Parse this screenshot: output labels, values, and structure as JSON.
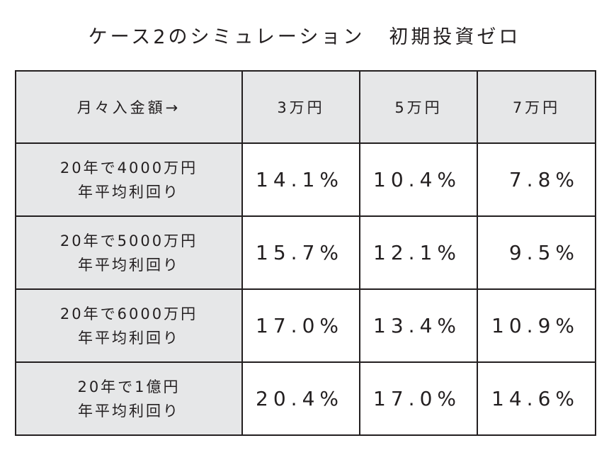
{
  "title": {
    "main": "ケース2のシミュレーション",
    "sub": "初期投資ゼロ"
  },
  "table": {
    "header_label": "月々入金額→",
    "columns": [
      "3万円",
      "5万円",
      "7万円"
    ],
    "rows": [
      {
        "label_line1": "20年で4000万円",
        "label_line2": "年平均利回り",
        "values": [
          "14.1%",
          "10.4%",
          "7.8%"
        ]
      },
      {
        "label_line1": "20年で5000万円",
        "label_line2": "年平均利回り",
        "values": [
          "15.7%",
          "12.1%",
          "9.5%"
        ]
      },
      {
        "label_line1": "20年で6000万円",
        "label_line2": "年平均利回り",
        "values": [
          "17.0%",
          "13.4%",
          "10.9%"
        ]
      },
      {
        "label_line1": "20年で1億円",
        "label_line2": "年平均利回り",
        "values": [
          "20.4%",
          "17.0%",
          "14.6%"
        ]
      }
    ]
  }
}
